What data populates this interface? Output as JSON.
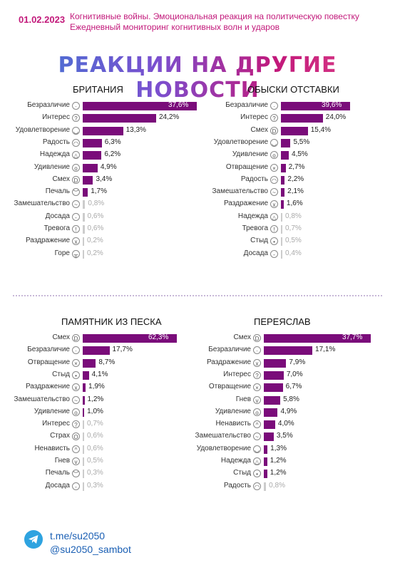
{
  "header": {
    "date": "01.02.2023",
    "subtitle_line1": "Когнитивные войны. Эмоциональная реакция на политическую повестку",
    "subtitle_line2": "Ежедневный мониторинг когнитивных волн и ударов"
  },
  "title": "РЕАКЦИИ НА ДРУГИЕ НОВОСТИ",
  "footer": {
    "link1": "t.me/su2050",
    "link2": "@su2050_sambot"
  },
  "colors": {
    "bar": "#7a0c7a",
    "bar_light": "#cccccc",
    "accent": "#c2187a"
  },
  "chart_data": [
    {
      "type": "bar",
      "title": "БРИТАНИЯ",
      "categories": [
        "Безразличие",
        "Интерес",
        "Удовлетворение",
        "Радость",
        "Надежда",
        "Удивление",
        "Смех",
        "Печаль",
        "Замешательство",
        "Досада",
        "Тревога",
        "Раздражение",
        "Горе"
      ],
      "icons": [
        "neutral-face-icon",
        "thinking-face-icon",
        "satisfied-face-icon",
        "joy-face-icon",
        "hope-icon",
        "surprise-face-icon",
        "laugh-face-icon",
        "sad-face-icon",
        "confused-face-icon",
        "annoyed-face-icon",
        "anxious-face-icon",
        "irritated-face-icon",
        "grief-face-icon"
      ],
      "values": [
        37.6,
        24.2,
        13.3,
        6.3,
        6.2,
        4.9,
        3.4,
        1.7,
        0.8,
        0.6,
        0.6,
        0.2,
        0.2
      ],
      "value_labels": [
        "37,6%",
        "24,2%",
        "13,3%",
        "6,3%",
        "6,2%",
        "4,9%",
        "3,4%",
        "1,7%",
        "0,8%",
        "0,6%",
        "0,6%",
        "0,2%",
        "0,2%"
      ]
    },
    {
      "type": "bar",
      "title": "ОБЫСКИ ОТСТАВКИ",
      "categories": [
        "Безразличие",
        "Интерес",
        "Смех",
        "Удовлетворение",
        "Удивление",
        "Отвращение",
        "Радость",
        "Замешательство",
        "Раздражение",
        "Надежда",
        "Тревога",
        "Стыд",
        "Досада"
      ],
      "icons": [
        "neutral-face-icon",
        "thinking-face-icon",
        "laugh-face-icon",
        "satisfied-face-icon",
        "surprise-face-icon",
        "disgust-face-icon",
        "joy-face-icon",
        "confused-face-icon",
        "irritated-face-icon",
        "hope-icon",
        "anxious-face-icon",
        "shame-face-icon",
        "annoyed-face-icon"
      ],
      "values": [
        39.6,
        24.0,
        15.4,
        5.5,
        4.5,
        2.7,
        2.2,
        2.1,
        1.6,
        0.8,
        0.7,
        0.5,
        0.4
      ],
      "value_labels": [
        "39,6%",
        "24,0%",
        "15,4%",
        "5,5%",
        "4,5%",
        "2,7%",
        "2,2%",
        "2,1%",
        "1,6%",
        "0,8%",
        "0,7%",
        "0,5%",
        "0,4%"
      ]
    },
    {
      "type": "bar",
      "title": "ПАМЯТНИК ИЗ ПЕСКА",
      "categories": [
        "Смех",
        "Безразличие",
        "Отвращение",
        "Стыд",
        "Раздражение",
        "Замешательство",
        "Удивление",
        "Интерес",
        "Страх",
        "Ненависть",
        "Гнев",
        "Печаль",
        "Досада"
      ],
      "icons": [
        "laugh-face-icon",
        "neutral-face-icon",
        "disgust-face-icon",
        "shame-face-icon",
        "irritated-face-icon",
        "confused-face-icon",
        "surprise-face-icon",
        "thinking-face-icon",
        "fear-face-icon",
        "hate-face-icon",
        "anger-face-icon",
        "sad-face-icon",
        "annoyed-face-icon"
      ],
      "values": [
        62.3,
        17.7,
        8.7,
        4.1,
        1.9,
        1.2,
        1.0,
        0.7,
        0.6,
        0.6,
        0.5,
        0.3,
        0.3
      ],
      "value_labels": [
        "62,3%",
        "17,7%",
        "8,7%",
        "4,1%",
        "1,9%",
        "1,2%",
        "1,0%",
        "0,7%",
        "0,6%",
        "0,6%",
        "0,5%",
        "0,3%",
        "0,3%"
      ]
    },
    {
      "type": "bar",
      "title": "ПЕРЕЯСЛАВ",
      "categories": [
        "Смех",
        "Безразличие",
        "Раздражение",
        "Интерес",
        "Отвращение",
        "Гнев",
        "Удивление",
        "Ненависть",
        "Замешательство",
        "Удовлетворение",
        "Надежда",
        "Стыд",
        "Радость"
      ],
      "icons": [
        "laugh-face-icon",
        "neutral-face-icon",
        "irritated-face-icon",
        "thinking-face-icon",
        "disgust-face-icon",
        "anger-face-icon",
        "surprise-face-icon",
        "hate-face-icon",
        "confused-face-icon",
        "satisfied-face-icon",
        "hope-icon",
        "shame-face-icon",
        "joy-face-icon"
      ],
      "values": [
        37.7,
        17.1,
        7.9,
        7.0,
        6.7,
        5.8,
        4.9,
        4.0,
        3.5,
        1.3,
        1.2,
        1.2,
        0.8
      ],
      "value_labels": [
        "37,7%",
        "17,1%",
        "7,9%",
        "7,0%",
        "6,7%",
        "5,8%",
        "4,9%",
        "4,0%",
        "3,5%",
        "1,3%",
        "1,2%",
        "1,2%",
        "0,8%"
      ]
    }
  ]
}
